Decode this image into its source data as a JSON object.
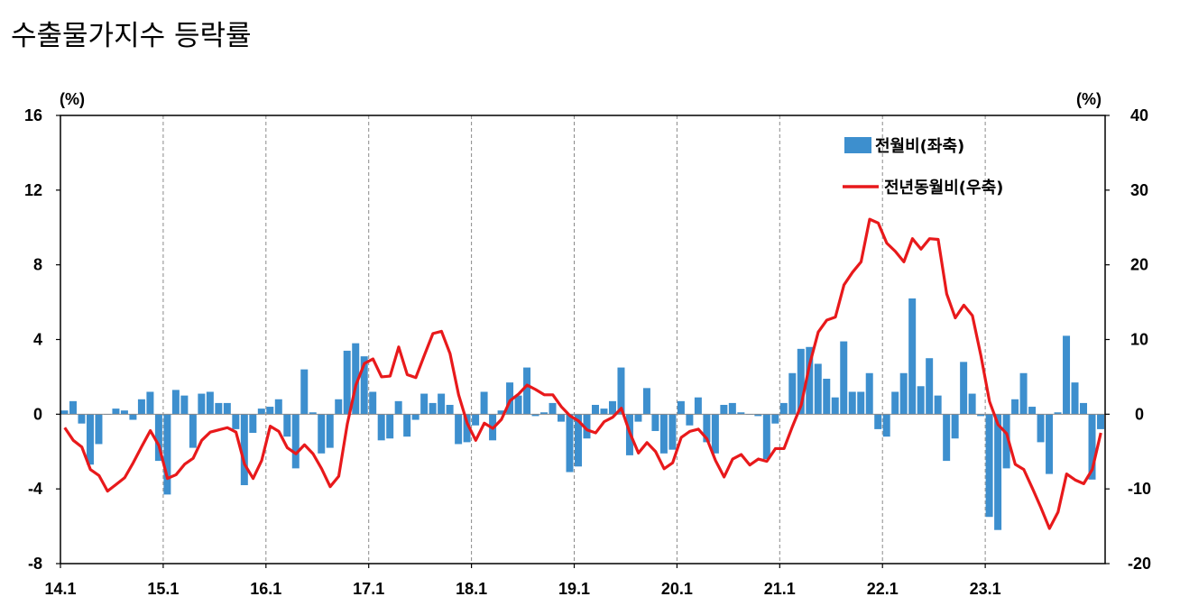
{
  "title": "수출물가지수 등락률",
  "chart_data": {
    "type": "bar+line",
    "title": "수출물가지수 등락률",
    "y_left": {
      "unit": "(%)",
      "ylim": [
        -8,
        16
      ],
      "ticks": [
        16,
        12,
        8,
        4,
        0,
        -4,
        -8
      ]
    },
    "y_right": {
      "unit": "(%)",
      "ylim": [
        -20,
        40
      ],
      "ticks": [
        40,
        30,
        20,
        10,
        0,
        -10,
        -20
      ]
    },
    "x_labels": [
      "14.1",
      "15.1",
      "16.1",
      "17.1",
      "18.1",
      "19.1",
      "20.1",
      "21.1",
      "22.1",
      "23.1"
    ],
    "grid": "vertical dashed lines at each year start",
    "legend": {
      "position": "top-right"
    },
    "series": [
      {
        "name": "전월비(좌축)",
        "type": "bar",
        "axis": "left",
        "color": "#3d8fce",
        "values": [
          0.2,
          0.7,
          -0.5,
          -2.7,
          -1.6,
          0.0,
          0.3,
          0.2,
          -0.3,
          0.8,
          1.2,
          -2.5,
          -4.3,
          1.3,
          1.0,
          -1.8,
          1.1,
          1.2,
          0.6,
          0.6,
          -0.8,
          -3.8,
          -1.0,
          0.3,
          0.4,
          0.8,
          -1.2,
          -2.9,
          2.4,
          0.1,
          -2.1,
          -1.8,
          0.8,
          3.4,
          3.8,
          3.1,
          1.2,
          -1.4,
          -1.3,
          0.7,
          -1.2,
          -0.3,
          1.1,
          0.6,
          1.1,
          0.5,
          -1.6,
          -1.5,
          -0.6,
          1.2,
          -1.4,
          0.2,
          1.7,
          1.0,
          2.5,
          -0.1,
          0.1,
          0.6,
          -0.4,
          -3.1,
          -2.8,
          -1.3,
          0.5,
          0.3,
          0.7,
          2.5,
          -2.2,
          -0.4,
          1.4,
          -0.9,
          -2.1,
          -1.9,
          0.7,
          -0.6,
          0.9,
          -1.5,
          -2.1,
          0.5,
          0.6,
          0.1,
          0.0,
          -0.1,
          -2.4,
          -0.5,
          0.6,
          2.2,
          3.5,
          3.6,
          2.7,
          1.9,
          0.9,
          3.9,
          1.2,
          1.2,
          2.2,
          -0.8,
          -1.2,
          1.2,
          2.2,
          6.2,
          1.5,
          3.0,
          1.0,
          -2.5,
          -1.3,
          2.8,
          1.1,
          -0.1,
          -5.5,
          -6.2,
          -2.9,
          0.8,
          2.2,
          0.4,
          -1.5,
          -3.2,
          0.1,
          4.2,
          1.7,
          0.6,
          -3.5,
          -0.8
        ]
      },
      {
        "name": "전년동월비(우축)",
        "type": "line",
        "axis": "right",
        "color": "#e8191b",
        "values": [
          -1.8,
          -3.5,
          -4.4,
          -7.4,
          -8.2,
          -10.3,
          -9.4,
          -8.5,
          -6.5,
          -4.3,
          -2.2,
          -4.2,
          -8.6,
          -8.1,
          -6.7,
          -5.9,
          -3.5,
          -2.4,
          -2.1,
          -1.8,
          -2.4,
          -6.7,
          -8.6,
          -6.2,
          -1.6,
          -2.3,
          -4.5,
          -5.3,
          -4.1,
          -5.3,
          -7.3,
          -9.7,
          -8.3,
          -1.3,
          3.9,
          6.8,
          7.4,
          5.0,
          5.1,
          9.0,
          5.3,
          4.9,
          7.9,
          10.8,
          11.1,
          8.1,
          2.6,
          -1.2,
          -3.5,
          -1.2,
          -1.9,
          -0.7,
          1.8,
          2.7,
          3.9,
          3.3,
          2.6,
          2.6,
          1.0,
          -0.2,
          -0.9,
          -2.1,
          -2.5,
          -1.0,
          -0.4,
          0.8,
          -2.5,
          -5.2,
          -3.8,
          -5.0,
          -7.3,
          -6.5,
          -3.1,
          -2.3,
          -2.0,
          -3.3,
          -6.2,
          -8.4,
          -6.0,
          -5.4,
          -6.8,
          -6.0,
          -6.3,
          -4.6,
          -4.6,
          -1.6,
          1.2,
          6.7,
          11.0,
          12.6,
          13.0,
          17.3,
          19.0,
          20.4,
          26.1,
          25.6,
          22.9,
          21.8,
          20.4,
          23.5,
          22.1,
          23.5,
          23.4,
          16.1,
          12.9,
          14.6,
          13.2,
          7.8,
          1.7,
          -1.4,
          -2.6,
          -6.7,
          -7.4,
          -9.9,
          -12.5,
          -15.3,
          -13.1,
          -8.0,
          -8.8,
          -9.3,
          -7.4,
          -2.5
        ]
      }
    ]
  }
}
